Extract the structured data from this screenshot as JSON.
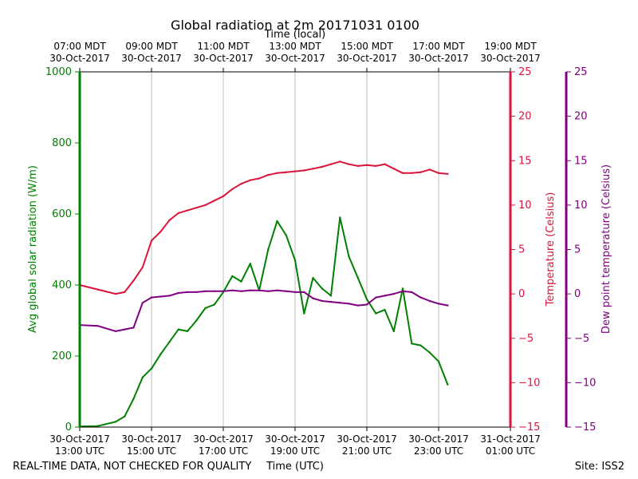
{
  "chart_data": {
    "type": "line",
    "title": "Global radiation at 2m 20171031 0100",
    "top_axis_label": "Time (local)",
    "top_ticks": [
      [
        "07:00 MDT",
        "30-Oct-2017"
      ],
      [
        "09:00 MDT",
        "30-Oct-2017"
      ],
      [
        "11:00 MDT",
        "30-Oct-2017"
      ],
      [
        "13:00 MDT",
        "30-Oct-2017"
      ],
      [
        "15:00 MDT",
        "30-Oct-2017"
      ],
      [
        "17:00 MDT",
        "30-Oct-2017"
      ],
      [
        "19:00 MDT",
        "30-Oct-2017"
      ]
    ],
    "xlabel": "Time (UTC)",
    "x_ticks": [
      [
        "30-Oct-2017",
        "13:00 UTC"
      ],
      [
        "30-Oct-2017",
        "15:00 UTC"
      ],
      [
        "30-Oct-2017",
        "17:00 UTC"
      ],
      [
        "30-Oct-2017",
        "19:00 UTC"
      ],
      [
        "30-Oct-2017",
        "21:00 UTC"
      ],
      [
        "30-Oct-2017",
        "23:00 UTC"
      ],
      [
        "31-Oct-2017",
        "01:00 UTC"
      ]
    ],
    "xlim": [
      "2017-10-30 13:00 UTC",
      "2017-10-31 01:00 UTC"
    ],
    "grid": "vertical",
    "left_axis": {
      "label": "Avg global solar radiation (W/m)",
      "color": "#008000",
      "ylim": [
        0,
        1000
      ],
      "ticks": [
        "0",
        "200",
        "400",
        "600",
        "800",
        "1000"
      ]
    },
    "right_axis_1": {
      "label": "Temperature (Celsius)",
      "color": "#DC143C",
      "ylim": [
        -15,
        25
      ],
      "ticks": [
        "−15",
        "−10",
        "−5",
        "0",
        "5",
        "10",
        "15",
        "20",
        "25"
      ]
    },
    "right_axis_2": {
      "label": "Dew point temperature (Celsius)",
      "color": "#800080",
      "ylim": [
        -15,
        25
      ],
      "ticks": [
        "−15",
        "−10",
        "−5",
        "0",
        "5",
        "10",
        "15",
        "20",
        "25"
      ]
    },
    "x": [
      "13:00",
      "13:30",
      "14:00",
      "14:15",
      "14:30",
      "14:45",
      "15:00",
      "15:15",
      "15:30",
      "15:45",
      "16:00",
      "16:15",
      "16:30",
      "16:45",
      "17:00",
      "17:15",
      "17:30",
      "17:45",
      "18:00",
      "18:15",
      "18:30",
      "18:45",
      "19:00",
      "19:15",
      "19:30",
      "19:45",
      "20:00",
      "20:15",
      "20:30",
      "20:45",
      "21:00",
      "21:15",
      "21:30",
      "21:45",
      "22:00",
      "22:15",
      "22:30",
      "22:45",
      "23:00",
      "23:15"
    ],
    "series": [
      {
        "axis": "left",
        "color": "#008000",
        "values": [
          2,
          3,
          15,
          30,
          80,
          140,
          165,
          205,
          240,
          275,
          270,
          300,
          335,
          345,
          380,
          425,
          410,
          460,
          385,
          500,
          580,
          540,
          470,
          320,
          420,
          390,
          370,
          590,
          480,
          420,
          360,
          320,
          330,
          270,
          390,
          235,
          230,
          210,
          185,
          120
        ]
      },
      {
        "axis": "right_1",
        "color": "#DC143C",
        "values": [
          1,
          0.5,
          0,
          0.2,
          1.5,
          3,
          6,
          7,
          8.3,
          9.1,
          9.4,
          9.7,
          10,
          10.5,
          11,
          11.8,
          12.4,
          12.8,
          13,
          13.4,
          13.6,
          13.7,
          13.8,
          13.9,
          14.1,
          14.3,
          14.6,
          14.9,
          14.6,
          14.4,
          14.5,
          14.4,
          14.6,
          14.1,
          13.6,
          13.6,
          13.7,
          14.0,
          13.6,
          13.5
        ]
      },
      {
        "axis": "right_2",
        "color": "#800080",
        "values": [
          -3.5,
          -3.6,
          -4.2,
          -4,
          -3.8,
          -1,
          -0.4,
          -0.3,
          -0.2,
          0.1,
          0.2,
          0.2,
          0.3,
          0.3,
          0.3,
          0.4,
          0.3,
          0.4,
          0.4,
          0.3,
          0.4,
          0.3,
          0.2,
          0.2,
          -0.5,
          -0.8,
          -0.9,
          -1.0,
          -1.1,
          -1.3,
          -1.2,
          -0.4,
          -0.2,
          0,
          0.3,
          0.2,
          -0.4,
          -0.8,
          -1.1,
          -1.3
        ]
      }
    ]
  },
  "footer": {
    "left_note": "REAL-TIME DATA, NOT CHECKED FOR QUALITY",
    "site": "Site: ISS2"
  }
}
